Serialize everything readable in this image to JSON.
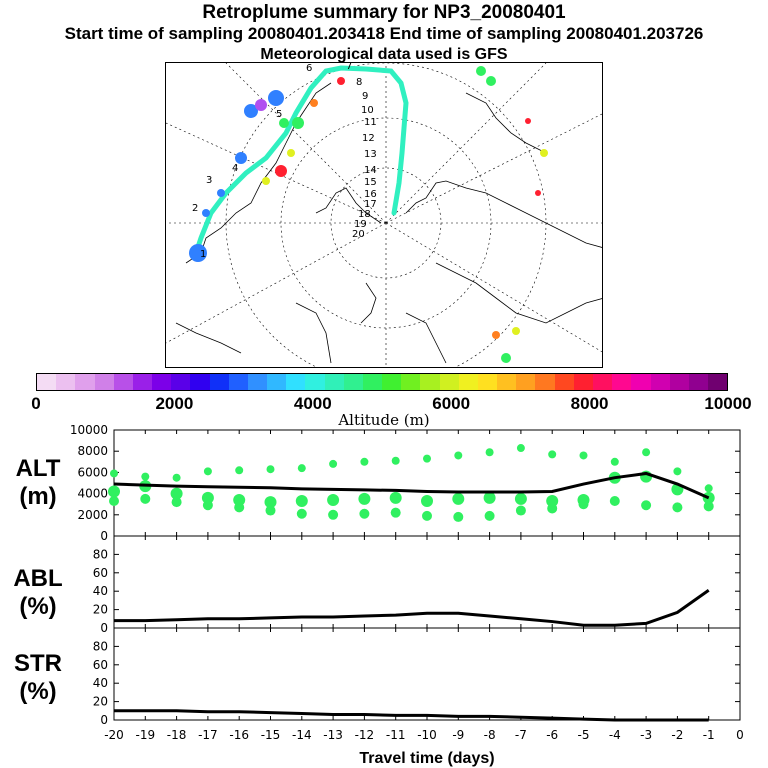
{
  "title": "Retroplume summary for NP3_20080401",
  "subtitle": "Start time of sampling 20080401.203418     End time of sampling 20080401.203726",
  "met_line": "Meteorological data used is GFS",
  "colorbar": {
    "title": "Altitude (m)",
    "tick_labels": [
      "0",
      "2000",
      "4000",
      "6000",
      "8000",
      "10000"
    ],
    "colors": [
      "#f4dcf4",
      "#ecc0f0",
      "#e0a0ec",
      "#d080e8",
      "#b850e8",
      "#9a20e8",
      "#7c00e8",
      "#5a00e8",
      "#3000f0",
      "#1030f8",
      "#2060ff",
      "#3090ff",
      "#30b8ff",
      "#30e0ff",
      "#30f0e0",
      "#30f0b8",
      "#30f090",
      "#30f060",
      "#40f030",
      "#70f020",
      "#a8f020",
      "#d0f020",
      "#f0f020",
      "#ffe020",
      "#ffc020",
      "#ffa020",
      "#ff7820",
      "#ff4820",
      "#ff2030",
      "#ff1060",
      "#ff0890",
      "#f000b0",
      "#d000b0",
      "#b000a0",
      "#900090",
      "#700070"
    ]
  },
  "map": {
    "trajectory_labels": [
      "1",
      "2",
      "3",
      "4",
      "5",
      "6",
      "7",
      "8",
      "9",
      "10",
      "11",
      "12",
      "13",
      "14",
      "15",
      "16",
      "17",
      "18",
      "19",
      "20"
    ],
    "plume_colors": {
      "trajectory": "#30f0c0",
      "low": "#3080ff",
      "mid": "#30f060",
      "high": "#ff2030"
    }
  },
  "panels": [
    {
      "label1": "ALT",
      "label2": "(m)"
    },
    {
      "label1": "ABL",
      "label2": "(%)"
    },
    {
      "label1": "STR",
      "label2": "(%)"
    }
  ],
  "chart_data": [
    {
      "type": "line",
      "title": "ALT (m)",
      "x": [
        -20,
        -19,
        -18,
        -17,
        -16,
        -15,
        -14,
        -13,
        -12,
        -11,
        -10,
        -9,
        -8,
        -7,
        -6,
        -5,
        -4,
        -3,
        -2,
        -1
      ],
      "series": [
        {
          "name": "mean altitude",
          "values": [
            4900,
            4800,
            4700,
            4650,
            4600,
            4550,
            4450,
            4400,
            4350,
            4300,
            4200,
            4150,
            4150,
            4150,
            4200,
            4900,
            5500,
            5900,
            4900,
            3600
          ]
        }
      ],
      "scatter_clusters": [
        [
          5900,
          4200,
          3300
        ],
        [
          5600,
          4700,
          3500
        ],
        [
          5500,
          4000,
          3200
        ],
        [
          6100,
          3600,
          2900
        ],
        [
          6200,
          3400,
          2700
        ],
        [
          6300,
          3200,
          2400
        ],
        [
          6400,
          3300,
          2100
        ],
        [
          6800,
          3400,
          2000
        ],
        [
          7000,
          3500,
          2100
        ],
        [
          7100,
          3600,
          2200
        ],
        [
          7300,
          3300,
          1900
        ],
        [
          7600,
          3500,
          1800
        ],
        [
          7900,
          3600,
          1900
        ],
        [
          8300,
          3500,
          2400
        ],
        [
          7700,
          3300,
          2600
        ],
        [
          7600,
          3400,
          3000
        ],
        [
          7000,
          5500,
          3300
        ],
        [
          7900,
          5600,
          2900
        ],
        [
          6100,
          4400,
          2700
        ],
        [
          4500,
          3600,
          2800
        ]
      ],
      "xlim": [
        -20,
        0
      ],
      "ylim": [
        0,
        10000
      ],
      "yticks": [
        "0",
        "2000",
        "4000",
        "6000",
        "8000",
        "10000"
      ]
    },
    {
      "type": "line",
      "title": "ABL (%)",
      "x": [
        -20,
        -19,
        -18,
        -17,
        -16,
        -15,
        -14,
        -13,
        -12,
        -11,
        -10,
        -9,
        -8,
        -7,
        -6,
        -5,
        -4,
        -3,
        -2,
        -1
      ],
      "series": [
        {
          "name": "ABL fraction",
          "values": [
            8,
            8,
            9,
            10,
            10,
            11,
            12,
            12,
            13,
            14,
            16,
            16,
            13,
            10,
            7,
            3,
            3,
            5,
            17,
            41
          ]
        }
      ],
      "xlim": [
        -20,
        0
      ],
      "ylim": [
        0,
        100
      ],
      "yticks": [
        "0",
        "20",
        "40",
        "60",
        "80"
      ]
    },
    {
      "type": "line",
      "title": "STR (%)",
      "x": [
        -20,
        -19,
        -18,
        -17,
        -16,
        -15,
        -14,
        -13,
        -12,
        -11,
        -10,
        -9,
        -8,
        -7,
        -6,
        -5,
        -4,
        -3,
        -2,
        -1
      ],
      "series": [
        {
          "name": "stratospheric fraction",
          "values": [
            10,
            10,
            10,
            9,
            9,
            8,
            7,
            6,
            6,
            5,
            5,
            4,
            4,
            3,
            2,
            1,
            0,
            0,
            0,
            0
          ]
        }
      ],
      "xlim": [
        -20,
        0
      ],
      "ylim": [
        0,
        100
      ],
      "yticks": [
        "0",
        "20",
        "40",
        "60",
        "80"
      ],
      "xlabel": "Travel time (days)",
      "xticks": [
        "-20",
        "-19",
        "-18",
        "-17",
        "-16",
        "-15",
        "-14",
        "-13",
        "-12",
        "-11",
        "-10",
        "-9",
        "-8",
        "-7",
        "-6",
        "-5",
        "-4",
        "-3",
        "-2",
        "-1",
        "0"
      ]
    }
  ]
}
